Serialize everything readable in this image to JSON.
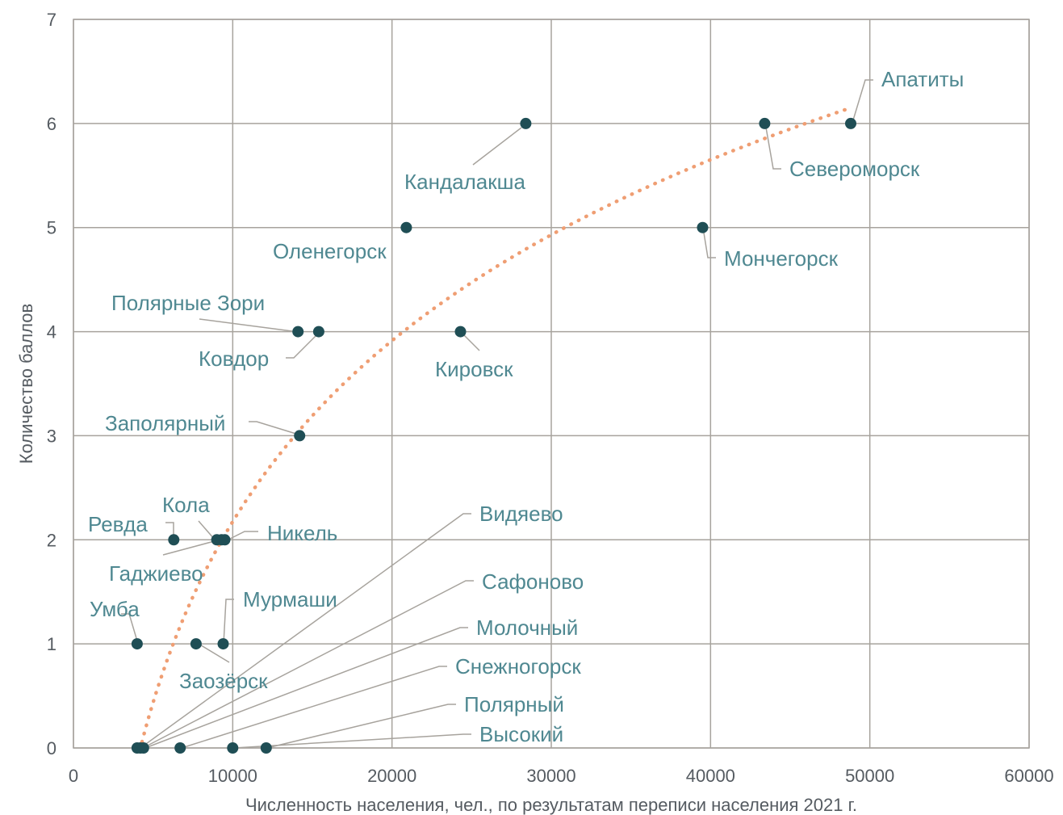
{
  "chart_data": {
    "type": "scatter",
    "xlabel": "Численность населения, чел., по результатам переписи населения 2021 г.",
    "ylabel": "Количество баллов",
    "xlim": [
      0,
      60000
    ],
    "ylim": [
      0,
      7
    ],
    "xticks": [
      "0",
      "10000",
      "20000",
      "30000",
      "40000",
      "50000",
      "60000"
    ],
    "yticks": [
      "0",
      "1",
      "2",
      "3",
      "4",
      "5",
      "6",
      "7"
    ],
    "grid": true,
    "trendline": {
      "type": "logarithmic",
      "style": "dotted",
      "color": "#ef9e73",
      "x_range": [
        4300,
        48800
      ]
    },
    "points": [
      {
        "name": "Апатиты",
        "x": 48800,
        "y": 6
      },
      {
        "name": "Североморск",
        "x": 43400,
        "y": 6
      },
      {
        "name": "Кандалакша",
        "x": 28400,
        "y": 6
      },
      {
        "name": "Оленегорск",
        "x": 20900,
        "y": 5
      },
      {
        "name": "Мончегорск",
        "x": 39500,
        "y": 5
      },
      {
        "name": "Полярные Зори",
        "x": 14100,
        "y": 4
      },
      {
        "name": "Ковдор",
        "x": 15400,
        "y": 4
      },
      {
        "name": "Кировск",
        "x": 24300,
        "y": 4
      },
      {
        "name": "Заполярный",
        "x": 14200,
        "y": 3
      },
      {
        "name": "Ревда",
        "x": 6300,
        "y": 2
      },
      {
        "name": "Кола",
        "x": 9000,
        "y": 2
      },
      {
        "name": "Гаджиево",
        "x": 9300,
        "y": 2
      },
      {
        "name": "Никель",
        "x": 9500,
        "y": 2
      },
      {
        "name": "Умба",
        "x": 4000,
        "y": 1
      },
      {
        "name": "Заозёрск",
        "x": 7700,
        "y": 1
      },
      {
        "name": "Мурмаши",
        "x": 9400,
        "y": 1
      },
      {
        "name": "Видяево",
        "x": 4000,
        "y": 0
      },
      {
        "name": "Сафоново",
        "x": 4200,
        "y": 0
      },
      {
        "name": "Молочный",
        "x": 4400,
        "y": 0
      },
      {
        "name": "Снежногорск",
        "x": 6700,
        "y": 0
      },
      {
        "name": "Полярный",
        "x": 12100,
        "y": 0
      },
      {
        "name": "Высокий",
        "x": 10000,
        "y": 0
      }
    ]
  },
  "colors": {
    "point": "#1f4e55",
    "label": "#4f8891",
    "grid": "#a7a39d",
    "trend": "#ef9e73"
  }
}
